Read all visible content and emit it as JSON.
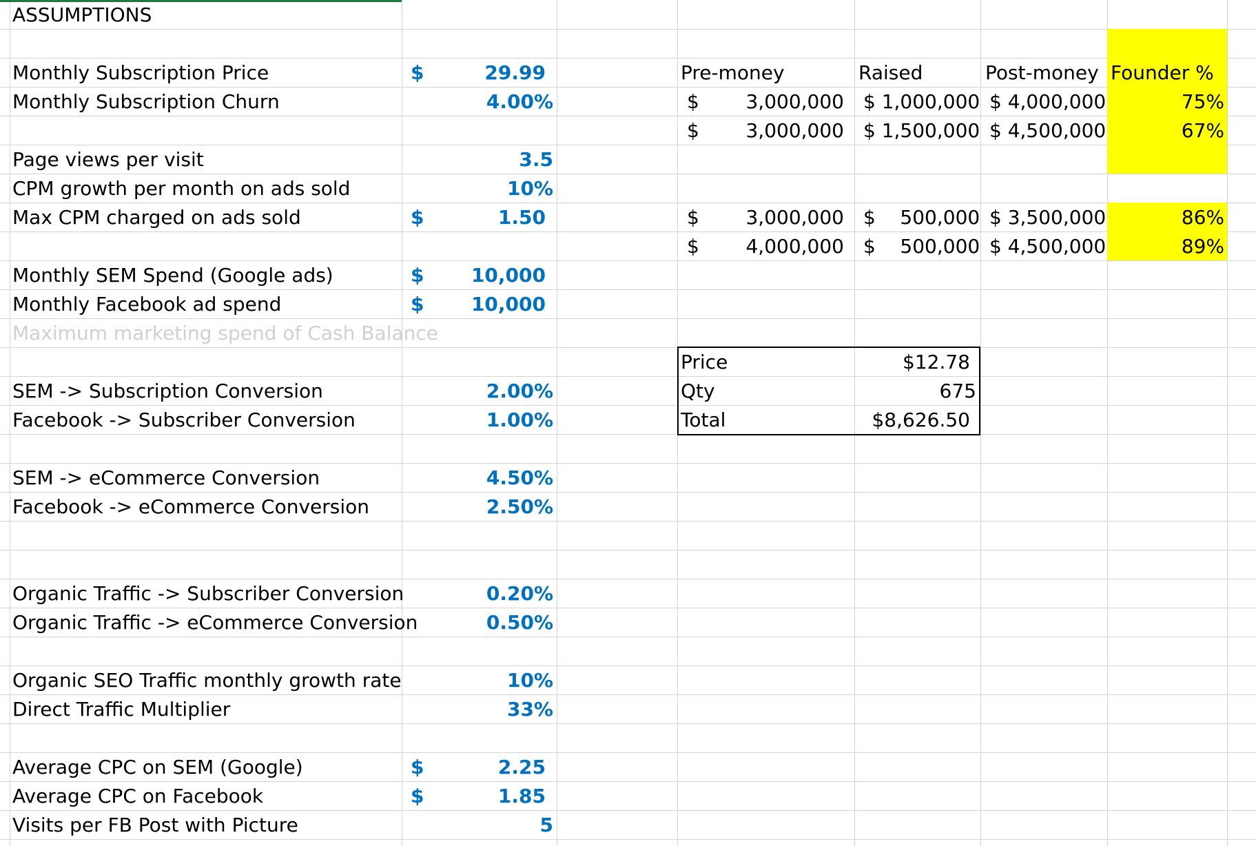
{
  "header": {
    "title": "ASSUMPTIONS"
  },
  "assumptions": [
    {
      "label": "Monthly Subscription Price",
      "currency": "$",
      "value": "29.99"
    },
    {
      "label": "Monthly Subscription Churn",
      "currency": "",
      "value": "4.00%"
    },
    {
      "label": "Page views per visit",
      "currency": "",
      "value": "3.5"
    },
    {
      "label": "CPM growth per month on ads sold",
      "currency": "",
      "value": "10%"
    },
    {
      "label": "Max CPM charged on ads sold",
      "currency": "$",
      "value": "1.50"
    },
    {
      "label": "Monthly SEM Spend (Google ads)",
      "currency": "$",
      "value": "10,000"
    },
    {
      "label": "Monthly Facebook ad spend",
      "currency": "$",
      "value": "10,000"
    },
    {
      "label": "Maximum marketing spend of Cash Balance",
      "currency": "",
      "value": ""
    },
    {
      "label": "SEM -> Subscription Conversion",
      "currency": "",
      "value": "2.00%"
    },
    {
      "label": "Facebook -> Subscriber Conversion",
      "currency": "",
      "value": "1.00%"
    },
    {
      "label": "SEM -> eCommerce Conversion",
      "currency": "",
      "value": "4.50%"
    },
    {
      "label": "Facebook -> eCommerce Conversion",
      "currency": "",
      "value": "2.50%"
    },
    {
      "label": "Organic Traffic -> Subscriber Conversion",
      "currency": "",
      "value": "0.20%"
    },
    {
      "label": "Organic Traffic -> eCommerce Conversion",
      "currency": "",
      "value": "0.50%"
    },
    {
      "label": "Organic SEO Traffic monthly growth rate",
      "currency": "",
      "value": "10%"
    },
    {
      "label": "Direct Traffic Multiplier",
      "currency": "",
      "value": "33%"
    },
    {
      "label": "Average CPC on SEM (Google)",
      "currency": "$",
      "value": "2.25"
    },
    {
      "label": "Average CPC on Facebook",
      "currency": "$",
      "value": "1.85"
    },
    {
      "label": "Visits per FB Post with Picture",
      "currency": "",
      "value": "5"
    }
  ],
  "funding": {
    "headers": {
      "pre": "Pre-money",
      "raised": "Raised",
      "post": "Post-money",
      "founder": "Founder %"
    },
    "rows": [
      {
        "sign": "$",
        "pre": "3,000,000",
        "raised": "$ 1,000,000",
        "post": "$ 4,000,000",
        "founder": "75%"
      },
      {
        "sign": "$",
        "pre": "3,000,000",
        "raised": "$ 1,500,000",
        "post": "$ 4,500,000",
        "founder": "67%"
      },
      {
        "sign": "$",
        "pre": "3,000,000",
        "raised": "$    500,000",
        "post": "$ 3,500,000",
        "founder": "86%"
      },
      {
        "sign": "$",
        "pre": "4,000,000",
        "raised": "$    500,000",
        "post": "$ 4,500,000",
        "founder": "89%"
      }
    ]
  },
  "pricing": {
    "price_label": "Price",
    "price_value": "$12.78",
    "qty_label": "Qty",
    "qty_value": "675",
    "total_label": "Total",
    "total_value": "$8,626.50"
  },
  "colors": {
    "input_blue": "#0070c0",
    "highlight_yellow": "#ffff00",
    "gridline": "#d4d4d4"
  }
}
